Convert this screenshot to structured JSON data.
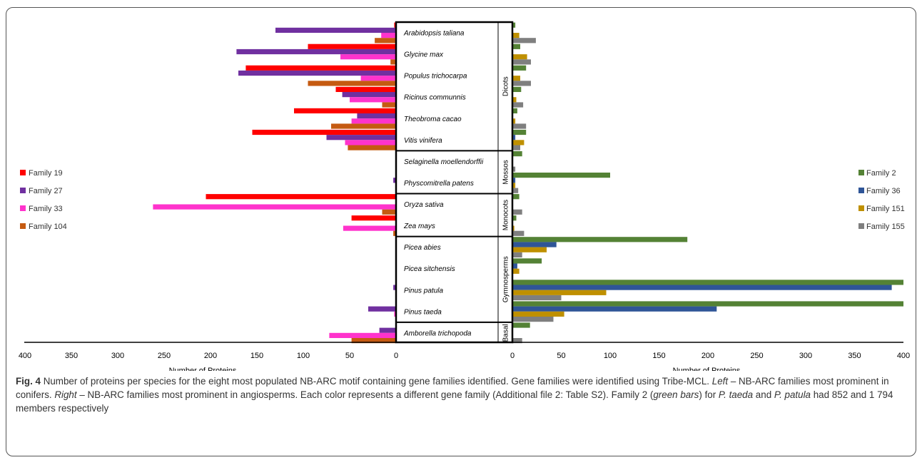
{
  "chart_data": [
    {
      "type": "bar",
      "orientation": "horizontal",
      "xlabel": "Number of Proteins",
      "xlim": [
        0,
        400
      ],
      "x_reversed": true,
      "ticks": [
        400,
        350,
        300,
        250,
        200,
        150,
        100,
        50,
        0
      ],
      "legend_position": "left",
      "categories": [
        "Arabidopsis taliana",
        "Glycine max",
        "Populus trichocarpa",
        "Ricinus communnis",
        "Theobroma cacao",
        "Vitis vinifera",
        "Selaginella moellendorffii",
        "Physcomitrella patens",
        "Oryza sativa",
        "Zea mays",
        "Picea abies",
        "Picea sitchensis",
        "Pinus patula",
        "Pinus taeda",
        "Amborella trichopoda"
      ],
      "series": [
        {
          "name": "Family 19",
          "color": "#ff0000",
          "values": [
            2,
            95,
            162,
            65,
            110,
            155,
            0,
            0,
            205,
            48,
            0,
            0,
            0,
            0,
            0
          ]
        },
        {
          "name": "Family 27",
          "color": "#7030a0",
          "values": [
            130,
            172,
            170,
            58,
            42,
            75,
            0,
            3,
            0,
            0,
            0,
            0,
            3,
            30,
            18
          ]
        },
        {
          "name": "Family 33",
          "color": "#ff33cc",
          "values": [
            16,
            60,
            38,
            50,
            48,
            55,
            0,
            0,
            262,
            57,
            0,
            0,
            0,
            2,
            72
          ]
        },
        {
          "name": "Family 104",
          "color": "#c55a11",
          "values": [
            23,
            6,
            95,
            15,
            70,
            52,
            0,
            0,
            15,
            3,
            0,
            0,
            0,
            0,
            48
          ]
        }
      ]
    },
    {
      "type": "bar",
      "orientation": "horizontal",
      "xlabel": "Number of Proteins",
      "xlim": [
        0,
        400
      ],
      "ticks": [
        0,
        50,
        100,
        150,
        200,
        250,
        300,
        350,
        400
      ],
      "legend_position": "right",
      "categories": [
        "Arabidopsis taliana",
        "Glycine max",
        "Populus trichocarpa",
        "Ricinus communnis",
        "Theobroma cacao",
        "Vitis vinifera",
        "Selaginella moellendorffii",
        "Physcomitrella patens",
        "Oryza sativa",
        "Zea mays",
        "Picea abies",
        "Picea sitchensis",
        "Pinus patula",
        "Pinus taeda",
        "Amborella trichopoda"
      ],
      "series": [
        {
          "name": "Family 2",
          "color": "#548235",
          "values": [
            3,
            8,
            14,
            9,
            5,
            14,
            10,
            100,
            7,
            4,
            179,
            30,
            400,
            400,
            18
          ]
        },
        {
          "name": "Family 36",
          "color": "#2f5597",
          "values": [
            0,
            0,
            0,
            0,
            0,
            3,
            0,
            3,
            0,
            0,
            45,
            5,
            388,
            209,
            0
          ]
        },
        {
          "name": "Family 151",
          "color": "#bf9000",
          "values": [
            7,
            15,
            8,
            4,
            3,
            12,
            0,
            3,
            0,
            2,
            35,
            7,
            96,
            53,
            0
          ]
        },
        {
          "name": "Family 155",
          "color": "#7f7f7f",
          "values": [
            24,
            19,
            19,
            11,
            14,
            8,
            3,
            6,
            10,
            12,
            10,
            0,
            50,
            42,
            10
          ]
        }
      ]
    }
  ],
  "groups": [
    {
      "label": "Dicots",
      "start": 0,
      "count": 6
    },
    {
      "label": "Mossos",
      "start": 6,
      "count": 2
    },
    {
      "label": "Monocots",
      "start": 8,
      "count": 2
    },
    {
      "label": "Gymnosperms",
      "start": 10,
      "count": 4
    },
    {
      "label": "Basal",
      "start": 14,
      "count": 1
    }
  ],
  "caption": {
    "fig": "Fig. 4",
    "t1": " Number of proteins per species for the eight most populated NB-ARC motif containing gene families identified. Gene families were identified using Tribe-MCL. ",
    "left": "Left",
    "t2": " – NB-ARC families most prominent in conifers. ",
    "right": "Right",
    "t3": " – NB-ARC families most prominent in angiosperms. Each color represents a different gene family (Additional file 2: Table S2). Family 2 (",
    "green": "green bars",
    "t4": ") for ",
    "pt": "P. taeda",
    "t5": " and ",
    "pp": "P. patula",
    "t6": " had 852 and 1 794 members respectively"
  }
}
